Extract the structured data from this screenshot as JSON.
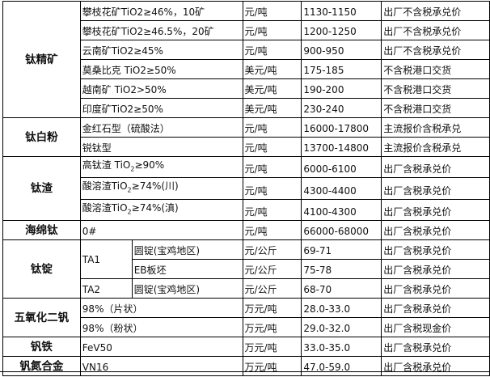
{
  "groups": [
    {
      "category": "钛精矿",
      "rows": [
        {
          "spec": "攀枝花矿TiO2≥46%，10矿",
          "unit": "元/吨",
          "price": "1130-1150",
          "note": "出厂不含税承兑价"
        },
        {
          "spec": "攀枝花矿TiO2≥46.5%，20矿",
          "unit": "元/吨",
          "price": "1200-1250",
          "note": "出厂不含税承兑价"
        },
        {
          "spec": "云南矿TiO2≥45%",
          "unit": "元/吨",
          "price": "900-950",
          "note": "出厂不含税承兑价"
        },
        {
          "spec": "莫桑比克 TiO2≥50%",
          "unit": "美元/吨",
          "price": "175-185",
          "note": "不含税港口交货"
        },
        {
          "spec": "越南矿 TiO2>50%",
          "unit": "美元/吨",
          "price": "190-200",
          "note": "不含税港口交货"
        },
        {
          "spec": "印度矿TiO2≥50%",
          "unit": "美元/吨",
          "price": "230-240",
          "note": "不含税港口交货"
        }
      ]
    },
    {
      "category": "钛白粉",
      "rows": [
        {
          "spec": "金红石型（硫酸法）",
          "unit": "元/吨",
          "price": "16000-17800",
          "note": "主流报价含税承兑"
        },
        {
          "spec": "锐钛型",
          "unit": "元/吨",
          "price": "13700-14800",
          "note": "主流报价含税承兑"
        }
      ]
    },
    {
      "category": "钛渣",
      "rows": [
        {
          "spec_pre": "高钛渣 TiO",
          "spec_sub": "2",
          "spec_post": "≥90%",
          "unit": "元/吨",
          "price": "6000-6100",
          "note": "出厂含税承兑价"
        },
        {
          "spec_pre": "酸溶渣TiO",
          "spec_sub": "2",
          "spec_post": "≥74%(川)",
          "unit": "元/吨",
          "price": "4300-4400",
          "note": "出厂含税承兑价"
        },
        {
          "spec_pre": "酸溶渣TiO",
          "spec_sub": "2",
          "spec_post": "≥74%(滇)",
          "unit": "元/吨",
          "price": "4100-4300",
          "note": "出厂含税承兑价"
        }
      ]
    },
    {
      "category": "海绵钛",
      "rows": [
        {
          "spec": "0#",
          "unit": "元/吨",
          "price": "66000-68000",
          "note": "出厂含税承兑价"
        }
      ]
    },
    {
      "category": "钛锭",
      "rows": [
        {
          "grade": "TA1",
          "spec": "圆锭(宝鸡地区)",
          "unit": "元/公斤",
          "price": "69-71",
          "note": "出厂含税承兑价"
        },
        {
          "spec": "EB板坯",
          "unit": "元/公斤",
          "price": "75-78",
          "note": "出厂含税承兑价"
        },
        {
          "grade": "TA2",
          "spec": "圆锭(宝鸡地区)",
          "unit": "元/公斤",
          "price": "68-70",
          "note": "出厂含税承兑价"
        }
      ]
    },
    {
      "category": "五氧化二钒",
      "rows": [
        {
          "spec": "98%（片状）",
          "unit": "万元/吨",
          "price": "28.0-33.0",
          "note": "出厂含税承兑价"
        },
        {
          "spec": "98%（粉状）",
          "unit": "万元/吨",
          "price": "29.0-32.0",
          "note": "出厂含税现金价"
        }
      ]
    },
    {
      "category": "钒铁",
      "rows": [
        {
          "spec": "FeV50",
          "unit": "万元/吨",
          "price": "33.0-35.0",
          "note": "出厂含税承兑价"
        }
      ]
    },
    {
      "category": "钒氮合金",
      "rows": [
        {
          "spec": "VN16",
          "unit": "万元/吨",
          "price": "47.0-59.0",
          "note": "出厂含税承兑价"
        }
      ]
    }
  ]
}
